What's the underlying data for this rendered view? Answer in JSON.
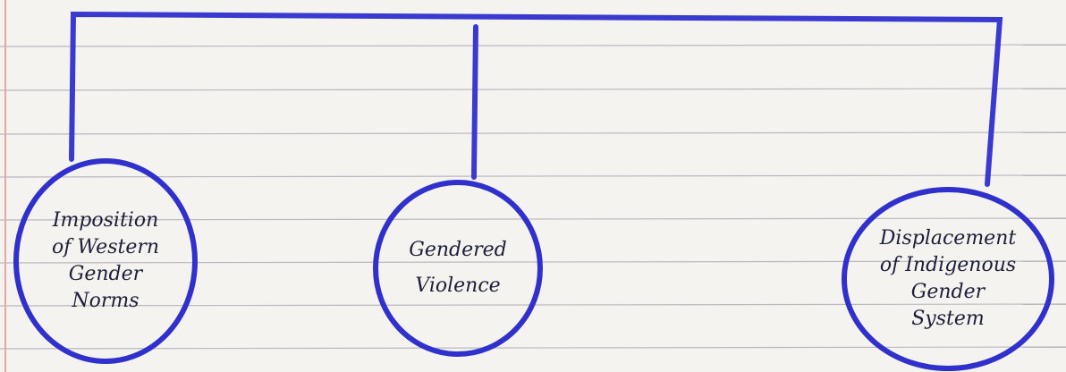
{
  "nodes": [
    {
      "lines": [
        "Imposition",
        "of Western",
        "Gender",
        "Norms"
      ]
    },
    {
      "lines": [
        "Gendered",
        "Violence"
      ]
    },
    {
      "lines": [
        "Displacement",
        "of Indigenous",
        "Gender",
        "System"
      ]
    }
  ]
}
